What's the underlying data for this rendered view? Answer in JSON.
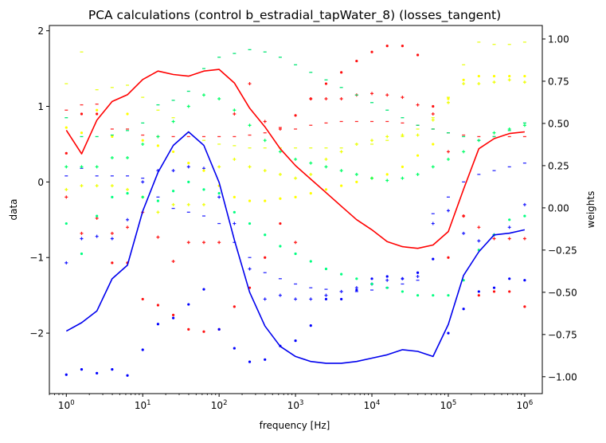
{
  "chart_data": {
    "type": "line",
    "title": "PCA calculations (control b_estradial_tapWater_8) (losses_tangent)",
    "xlabel": "frequency [Hz]",
    "ylabel": "data",
    "y2label": "weights",
    "xscale": "log",
    "xlim": [
      0.6,
      1700000.0
    ],
    "ylim": [
      -2.8,
      2.07
    ],
    "y2lim": [
      -1.1,
      1.08
    ],
    "x_ticks": [
      {
        "label": "10",
        "sup": "0",
        "value": 1
      },
      {
        "label": "10",
        "sup": "1",
        "value": 10
      },
      {
        "label": "10",
        "sup": "2",
        "value": 100
      },
      {
        "label": "10",
        "sup": "3",
        "value": 1000
      },
      {
        "label": "10",
        "sup": "4",
        "value": 10000
      },
      {
        "label": "10",
        "sup": "5",
        "value": 100000
      },
      {
        "label": "10",
        "sup": "6",
        "value": 1000000
      }
    ],
    "y_ticks": [
      {
        "label": "2",
        "value": 2
      },
      {
        "label": "1",
        "value": 1
      },
      {
        "label": "0",
        "value": 0
      },
      {
        "label": "−1",
        "value": -1
      },
      {
        "label": "−2",
        "value": -2
      }
    ],
    "y2_ticks": [
      {
        "label": "1.00",
        "value": 1.0
      },
      {
        "label": "0.75",
        "value": 0.75
      },
      {
        "label": "0.50",
        "value": 0.5
      },
      {
        "label": "0.25",
        "value": 0.25
      },
      {
        "label": "0.00",
        "value": 0.0
      },
      {
        "label": "−0.25",
        "value": -0.25
      },
      {
        "label": "−0.50",
        "value": -0.5
      },
      {
        "label": "−0.75",
        "value": -0.75
      },
      {
        "label": "−1.00",
        "value": -1.0
      }
    ],
    "x": [
      1,
      1.585,
      2.512,
      3.981,
      6.31,
      10,
      15.85,
      25.12,
      39.81,
      63.1,
      100,
      158.5,
      251.2,
      398.1,
      631,
      1000,
      1585,
      2512,
      3981,
      6310,
      10000,
      15850,
      25120,
      39810,
      63100,
      100000,
      158500,
      251200,
      398100,
      631000,
      1000000
    ],
    "lines": [
      {
        "color": "#ff0000",
        "axis": "right",
        "values": [
          0.46,
          0.32,
          0.52,
          0.63,
          0.67,
          0.76,
          0.81,
          0.79,
          0.78,
          0.81,
          0.82,
          0.74,
          0.59,
          0.48,
          0.35,
          0.25,
          0.17,
          0.09,
          0.01,
          -0.07,
          -0.13,
          -0.2,
          -0.23,
          -0.24,
          -0.22,
          -0.14,
          0.11,
          0.35,
          0.41,
          0.44,
          0.45
        ]
      },
      {
        "color": "#0000ee",
        "axis": "right",
        "values": [
          -0.73,
          -0.68,
          -0.61,
          -0.42,
          -0.34,
          -0.02,
          0.21,
          0.37,
          0.45,
          0.37,
          0.15,
          -0.19,
          -0.5,
          -0.7,
          -0.82,
          -0.88,
          -0.91,
          -0.92,
          -0.92,
          -0.91,
          -0.89,
          -0.87,
          -0.84,
          -0.85,
          -0.88,
          -0.69,
          -0.4,
          -0.26,
          -0.16,
          -0.15,
          -0.13
        ]
      }
    ],
    "scatter_series": [
      {
        "color": "#ff1010",
        "marker": "dot",
        "values": [
          0.38,
          0.9,
          0.9,
          -1.07,
          -1.07,
          -1.55,
          -1.63,
          -1.76,
          -1.95,
          -1.98,
          -1.95,
          -1.65,
          -1.4,
          -1.0,
          -0.55,
          0.88,
          1.1,
          1.3,
          1.45,
          1.6,
          1.72,
          1.8,
          1.8,
          1.68,
          1.0,
          -1.0,
          -0.45,
          -1.5,
          -1.45,
          -1.45,
          -1.65
        ]
      },
      {
        "color": "#ff1a1a",
        "marker": "plus",
        "values": [
          -0.2,
          -0.68,
          -0.48,
          -0.68,
          -0.6,
          -0.4,
          -0.73,
          -1.05,
          -0.8,
          -0.8,
          -0.8,
          0.9,
          1.3,
          0.8,
          0.7,
          -0.8,
          1.1,
          1.1,
          1.1,
          1.15,
          1.17,
          1.15,
          1.12,
          1.02,
          0.9,
          0.4,
          -0.45,
          -0.6,
          -0.75,
          -0.75,
          -0.75
        ]
      },
      {
        "color": "#ff2a2a",
        "marker": "dash",
        "values": [
          0.95,
          1.02,
          1.03,
          0.7,
          0.7,
          0.62,
          0.6,
          0.6,
          0.6,
          0.6,
          0.6,
          0.6,
          0.62,
          0.65,
          0.72,
          0.7,
          0.75,
          0.78,
          0.8,
          0.8,
          0.8,
          0.8,
          0.78,
          0.75,
          0.7,
          0.65,
          0.62,
          0.6,
          0.6,
          0.6,
          0.6
        ]
      },
      {
        "color": "#0000ff",
        "marker": "dot",
        "values": [
          -2.55,
          -2.48,
          -2.53,
          -2.48,
          -2.56,
          -2.22,
          -1.88,
          -1.8,
          -1.62,
          -1.42,
          -1.95,
          -2.2,
          -2.38,
          -2.35,
          -2.17,
          -2.1,
          -1.9,
          -1.55,
          -1.55,
          -1.43,
          -1.28,
          -1.25,
          -1.28,
          -1.2,
          -1.02,
          -2.0,
          -1.68,
          -1.45,
          -1.4,
          -1.28,
          -1.3
        ]
      },
      {
        "color": "#1a1aff",
        "marker": "plus",
        "values": [
          -1.07,
          -0.75,
          -0.72,
          -0.75,
          -0.5,
          0.0,
          0.15,
          0.15,
          0.2,
          0.18,
          -0.2,
          -0.55,
          -1.15,
          -1.55,
          -1.5,
          -1.55,
          -1.55,
          -1.5,
          -1.45,
          -1.4,
          -1.35,
          -1.3,
          -1.28,
          -1.25,
          -0.55,
          -0.38,
          -0.68,
          -0.78,
          -0.7,
          -0.6,
          -0.3
        ]
      },
      {
        "color": "#2a2aff",
        "marker": "dash",
        "values": [
          0.08,
          0.18,
          0.08,
          0.08,
          0.08,
          0.05,
          -0.2,
          -0.35,
          -0.4,
          -0.45,
          -0.55,
          -0.8,
          -1.0,
          -1.2,
          -1.28,
          -1.35,
          -1.4,
          -1.42,
          -1.45,
          -1.45,
          -1.43,
          -1.4,
          -1.35,
          -1.3,
          -0.42,
          -0.2,
          0.0,
          0.1,
          0.15,
          0.2,
          0.25
        ]
      },
      {
        "color": "#ffff00",
        "marker": "dot",
        "values": [
          0.72,
          0.65,
          0.95,
          0.6,
          0.9,
          0.55,
          0.48,
          0.4,
          0.25,
          0.15,
          -0.05,
          -0.2,
          -0.25,
          -0.25,
          -0.22,
          -0.2,
          -0.15,
          -0.1,
          -0.05,
          0.0,
          0.05,
          0.1,
          0.2,
          0.35,
          0.5,
          1.1,
          1.35,
          1.4,
          1.4,
          1.4,
          1.4
        ]
      },
      {
        "color": "#eeff00",
        "marker": "plus",
        "values": [
          -0.1,
          -0.05,
          -0.05,
          -0.05,
          -0.1,
          -0.2,
          -0.4,
          -0.3,
          -0.3,
          -0.3,
          0.2,
          0.3,
          0.2,
          0.15,
          0.1,
          0.05,
          0.1,
          0.3,
          0.4,
          0.5,
          0.55,
          0.6,
          0.62,
          0.62,
          0.82,
          1.05,
          1.3,
          1.3,
          1.32,
          1.35,
          1.32
        ]
      },
      {
        "color": "#e8ff1a",
        "marker": "dash",
        "values": [
          1.3,
          1.72,
          1.22,
          1.25,
          1.28,
          1.12,
          0.95,
          0.85,
          0.65,
          0.55,
          0.5,
          0.48,
          0.45,
          0.45,
          0.45,
          0.45,
          0.45,
          0.45,
          0.45,
          0.5,
          0.5,
          0.55,
          0.6,
          0.7,
          0.85,
          1.12,
          1.55,
          1.85,
          1.82,
          1.82,
          1.85
        ]
      },
      {
        "color": "#00ff80",
        "marker": "dot",
        "values": [
          -0.55,
          -0.95,
          -0.45,
          -0.2,
          -0.15,
          -0.2,
          -0.25,
          -0.12,
          0.0,
          -0.1,
          -0.15,
          -0.4,
          -0.55,
          -0.7,
          -0.85,
          -0.95,
          -1.05,
          -1.15,
          -1.22,
          -1.28,
          -1.35,
          -1.4,
          -1.45,
          -1.5,
          -1.5,
          -1.5,
          -1.3,
          -0.9,
          -0.7,
          -0.5,
          -0.45
        ]
      },
      {
        "color": "#00ff66",
        "marker": "plus",
        "values": [
          0.2,
          0.2,
          0.2,
          0.32,
          0.32,
          0.5,
          0.6,
          0.8,
          1.0,
          1.15,
          1.1,
          0.95,
          0.75,
          0.55,
          0.4,
          0.3,
          0.25,
          0.2,
          0.15,
          0.1,
          0.05,
          0.02,
          0.05,
          0.1,
          0.2,
          0.3,
          0.4,
          0.55,
          0.65,
          0.7,
          0.75
        ]
      },
      {
        "color": "#00e673",
        "marker": "dash",
        "values": [
          0.85,
          0.6,
          0.6,
          0.62,
          0.68,
          0.78,
          1.02,
          1.08,
          1.2,
          1.5,
          1.65,
          1.7,
          1.75,
          1.72,
          1.65,
          1.55,
          1.45,
          1.35,
          1.25,
          1.15,
          1.05,
          0.95,
          0.85,
          0.75,
          0.7,
          0.65,
          0.6,
          0.55,
          0.6,
          0.68,
          0.78
        ]
      }
    ]
  }
}
